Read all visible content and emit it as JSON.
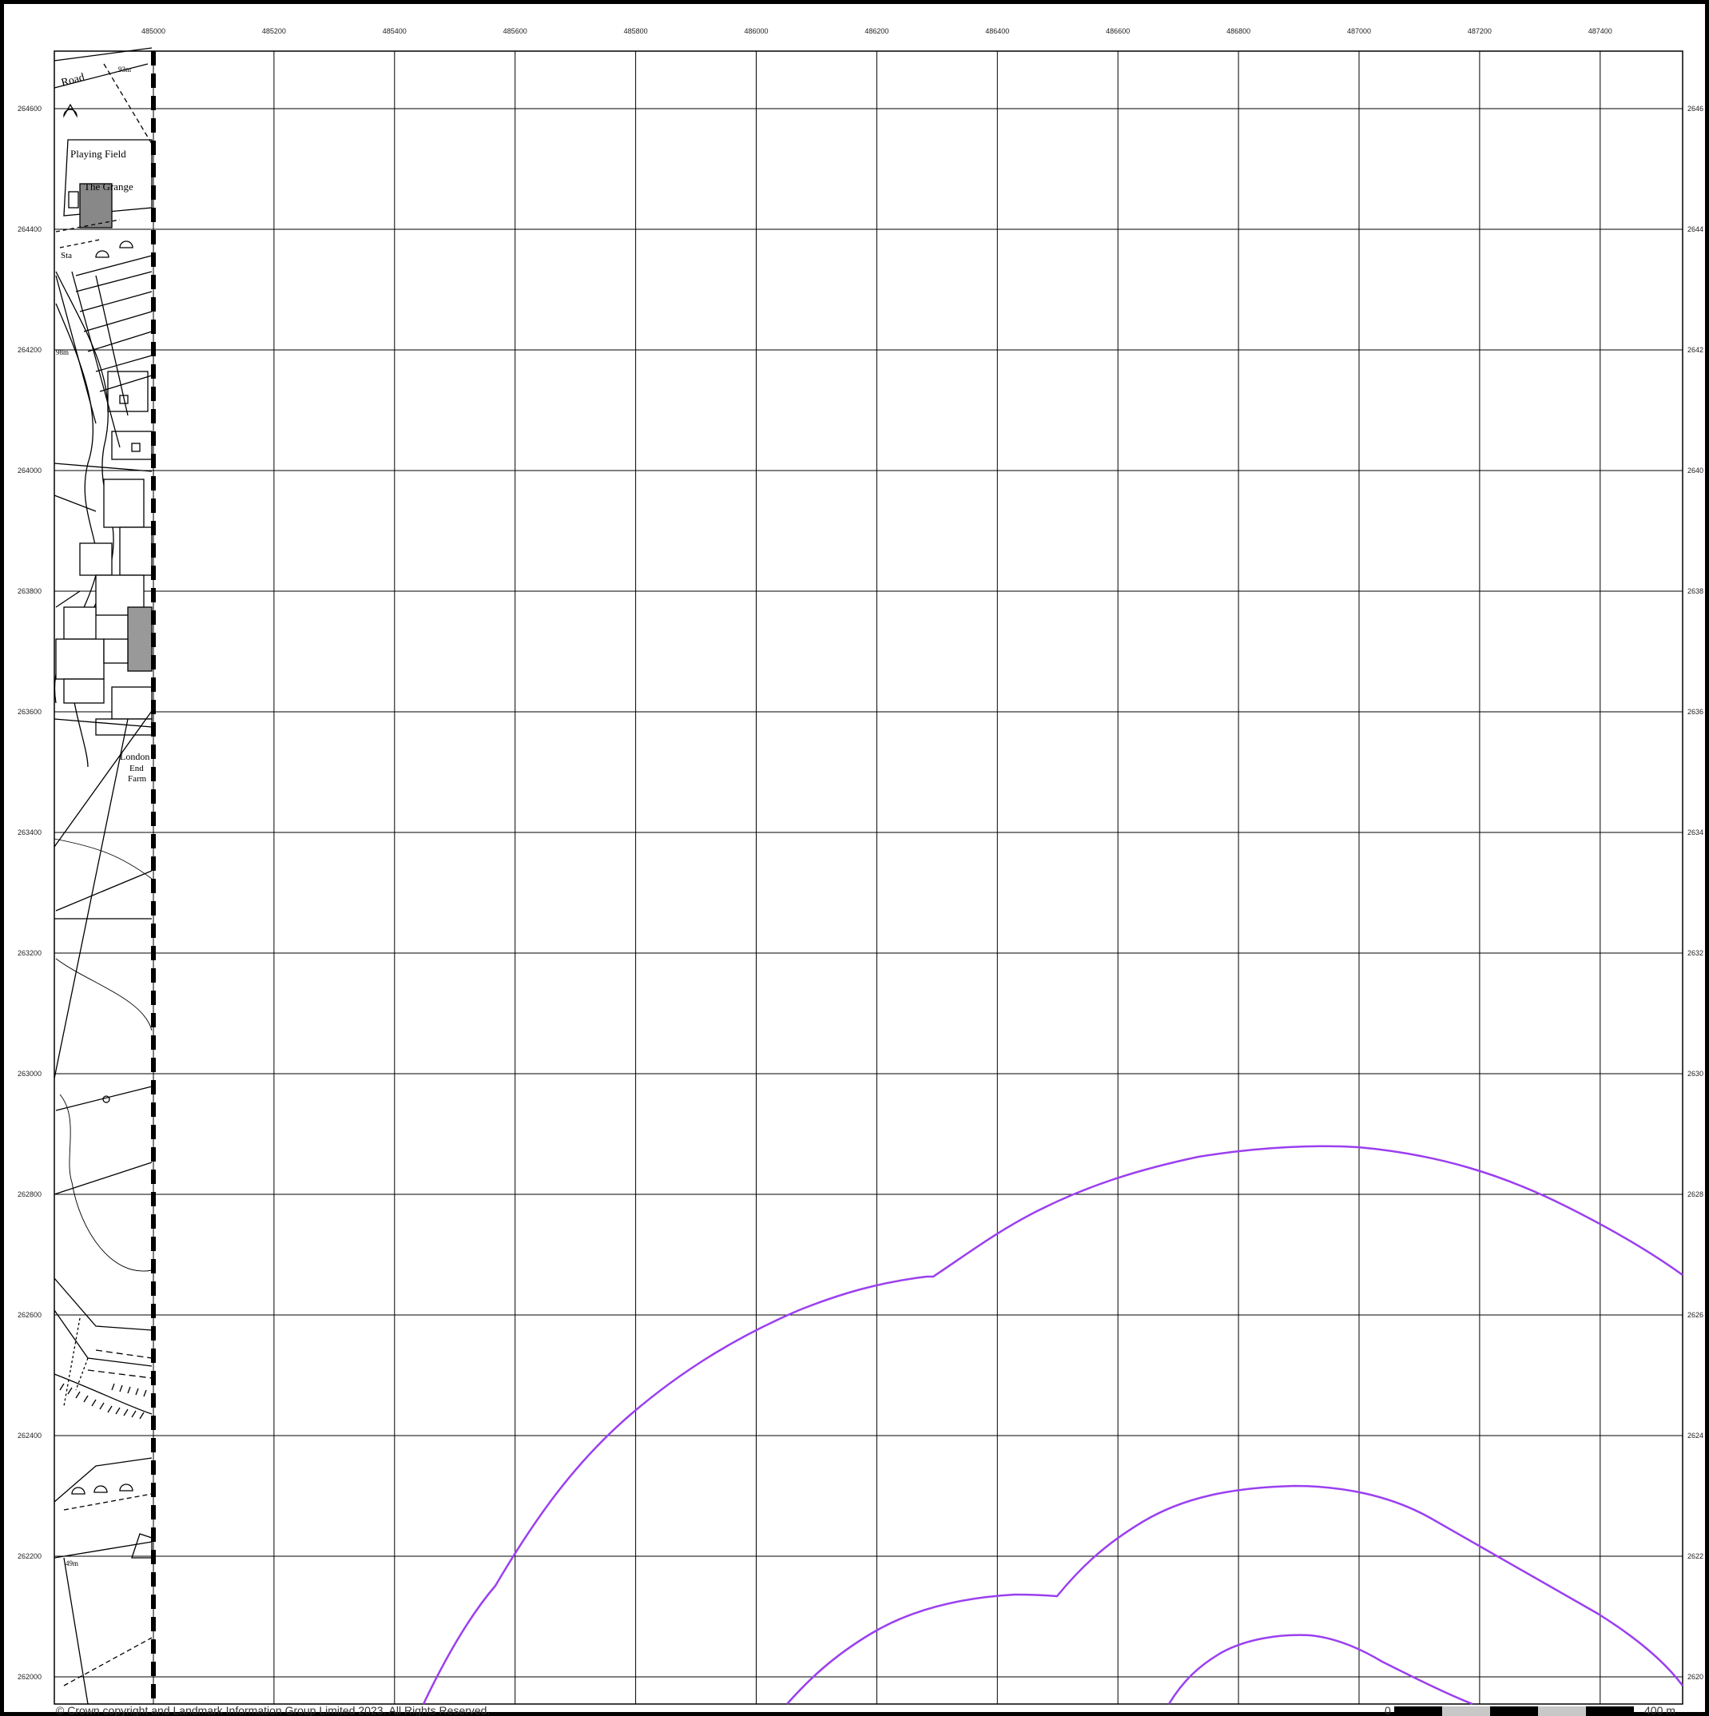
{
  "map": {
    "copyright": "© Crown copyright and Landmark Information Group Limited 2023.  All Rights Reserved.",
    "x_ticks": [
      "485000",
      "485200",
      "485400",
      "485600",
      "485800",
      "486000",
      "486200",
      "486400",
      "486600",
      "486800",
      "487000",
      "487200",
      "487400"
    ],
    "y_ticks_left": [
      "264600",
      "264400",
      "264200",
      "264000",
      "263800",
      "263600",
      "263400",
      "263200",
      "263000",
      "262800",
      "262600",
      "262400",
      "262200",
      "262000"
    ],
    "y_ticks_right": [
      "2646",
      "2644",
      "2642",
      "2640",
      "2638",
      "2636",
      "2634",
      "2632",
      "2630",
      "2628",
      "2626",
      "2624",
      "2622",
      "2620"
    ],
    "scale_bar": {
      "start": "0",
      "end": "400 m"
    },
    "labels": {
      "road": "Road",
      "spot_height_top": "93m",
      "playing_field": "Playing Field",
      "the_grange": "The Grange",
      "sta": "Sta",
      "spot_height_mid": "98m",
      "london_end_farm_1": "London",
      "london_end_farm_2": "End",
      "london_end_farm_3": "Farm",
      "spot_height_bottom": "49m"
    },
    "contour_color": "#9b3ff0",
    "frame_color": "#000000",
    "grid_color": "#000000"
  }
}
